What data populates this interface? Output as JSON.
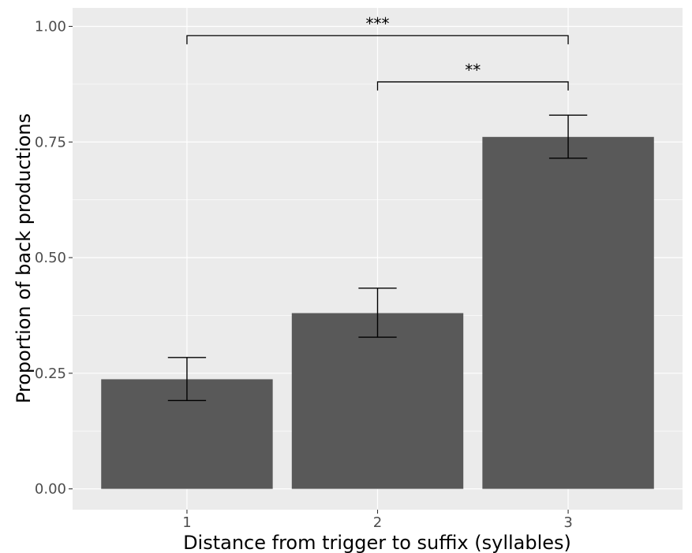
{
  "chart_data": {
    "type": "bar",
    "title": "",
    "xlabel": "Distance from trigger to suffix (syllables)",
    "ylabel": "Proportion of back productions",
    "categories": [
      "1",
      "2",
      "3"
    ],
    "values": [
      0.237,
      0.38,
      0.761
    ],
    "error_bars": [
      {
        "lower": 0.191,
        "upper": 0.284
      },
      {
        "lower": 0.328,
        "upper": 0.434
      },
      {
        "lower": 0.715,
        "upper": 0.808
      }
    ],
    "ylim": [
      -0.045,
      1.04
    ],
    "yticks": [
      0.0,
      0.25,
      0.5,
      0.75,
      1.0
    ],
    "ytick_labels": [
      "0.00",
      "0.25",
      "0.50",
      "0.75",
      "1.00"
    ],
    "grid": true,
    "legend": "none",
    "significance": [
      {
        "from": "1",
        "to": "3",
        "y": 0.98,
        "label": "***"
      },
      {
        "from": "2",
        "to": "3",
        "y": 0.88,
        "label": "**"
      }
    ],
    "colors": {
      "bar": "#595959",
      "panel": "#ebebeb",
      "grid": "#ffffff",
      "error_bar": "#000000",
      "tick_label": "#4d4d4d"
    }
  }
}
